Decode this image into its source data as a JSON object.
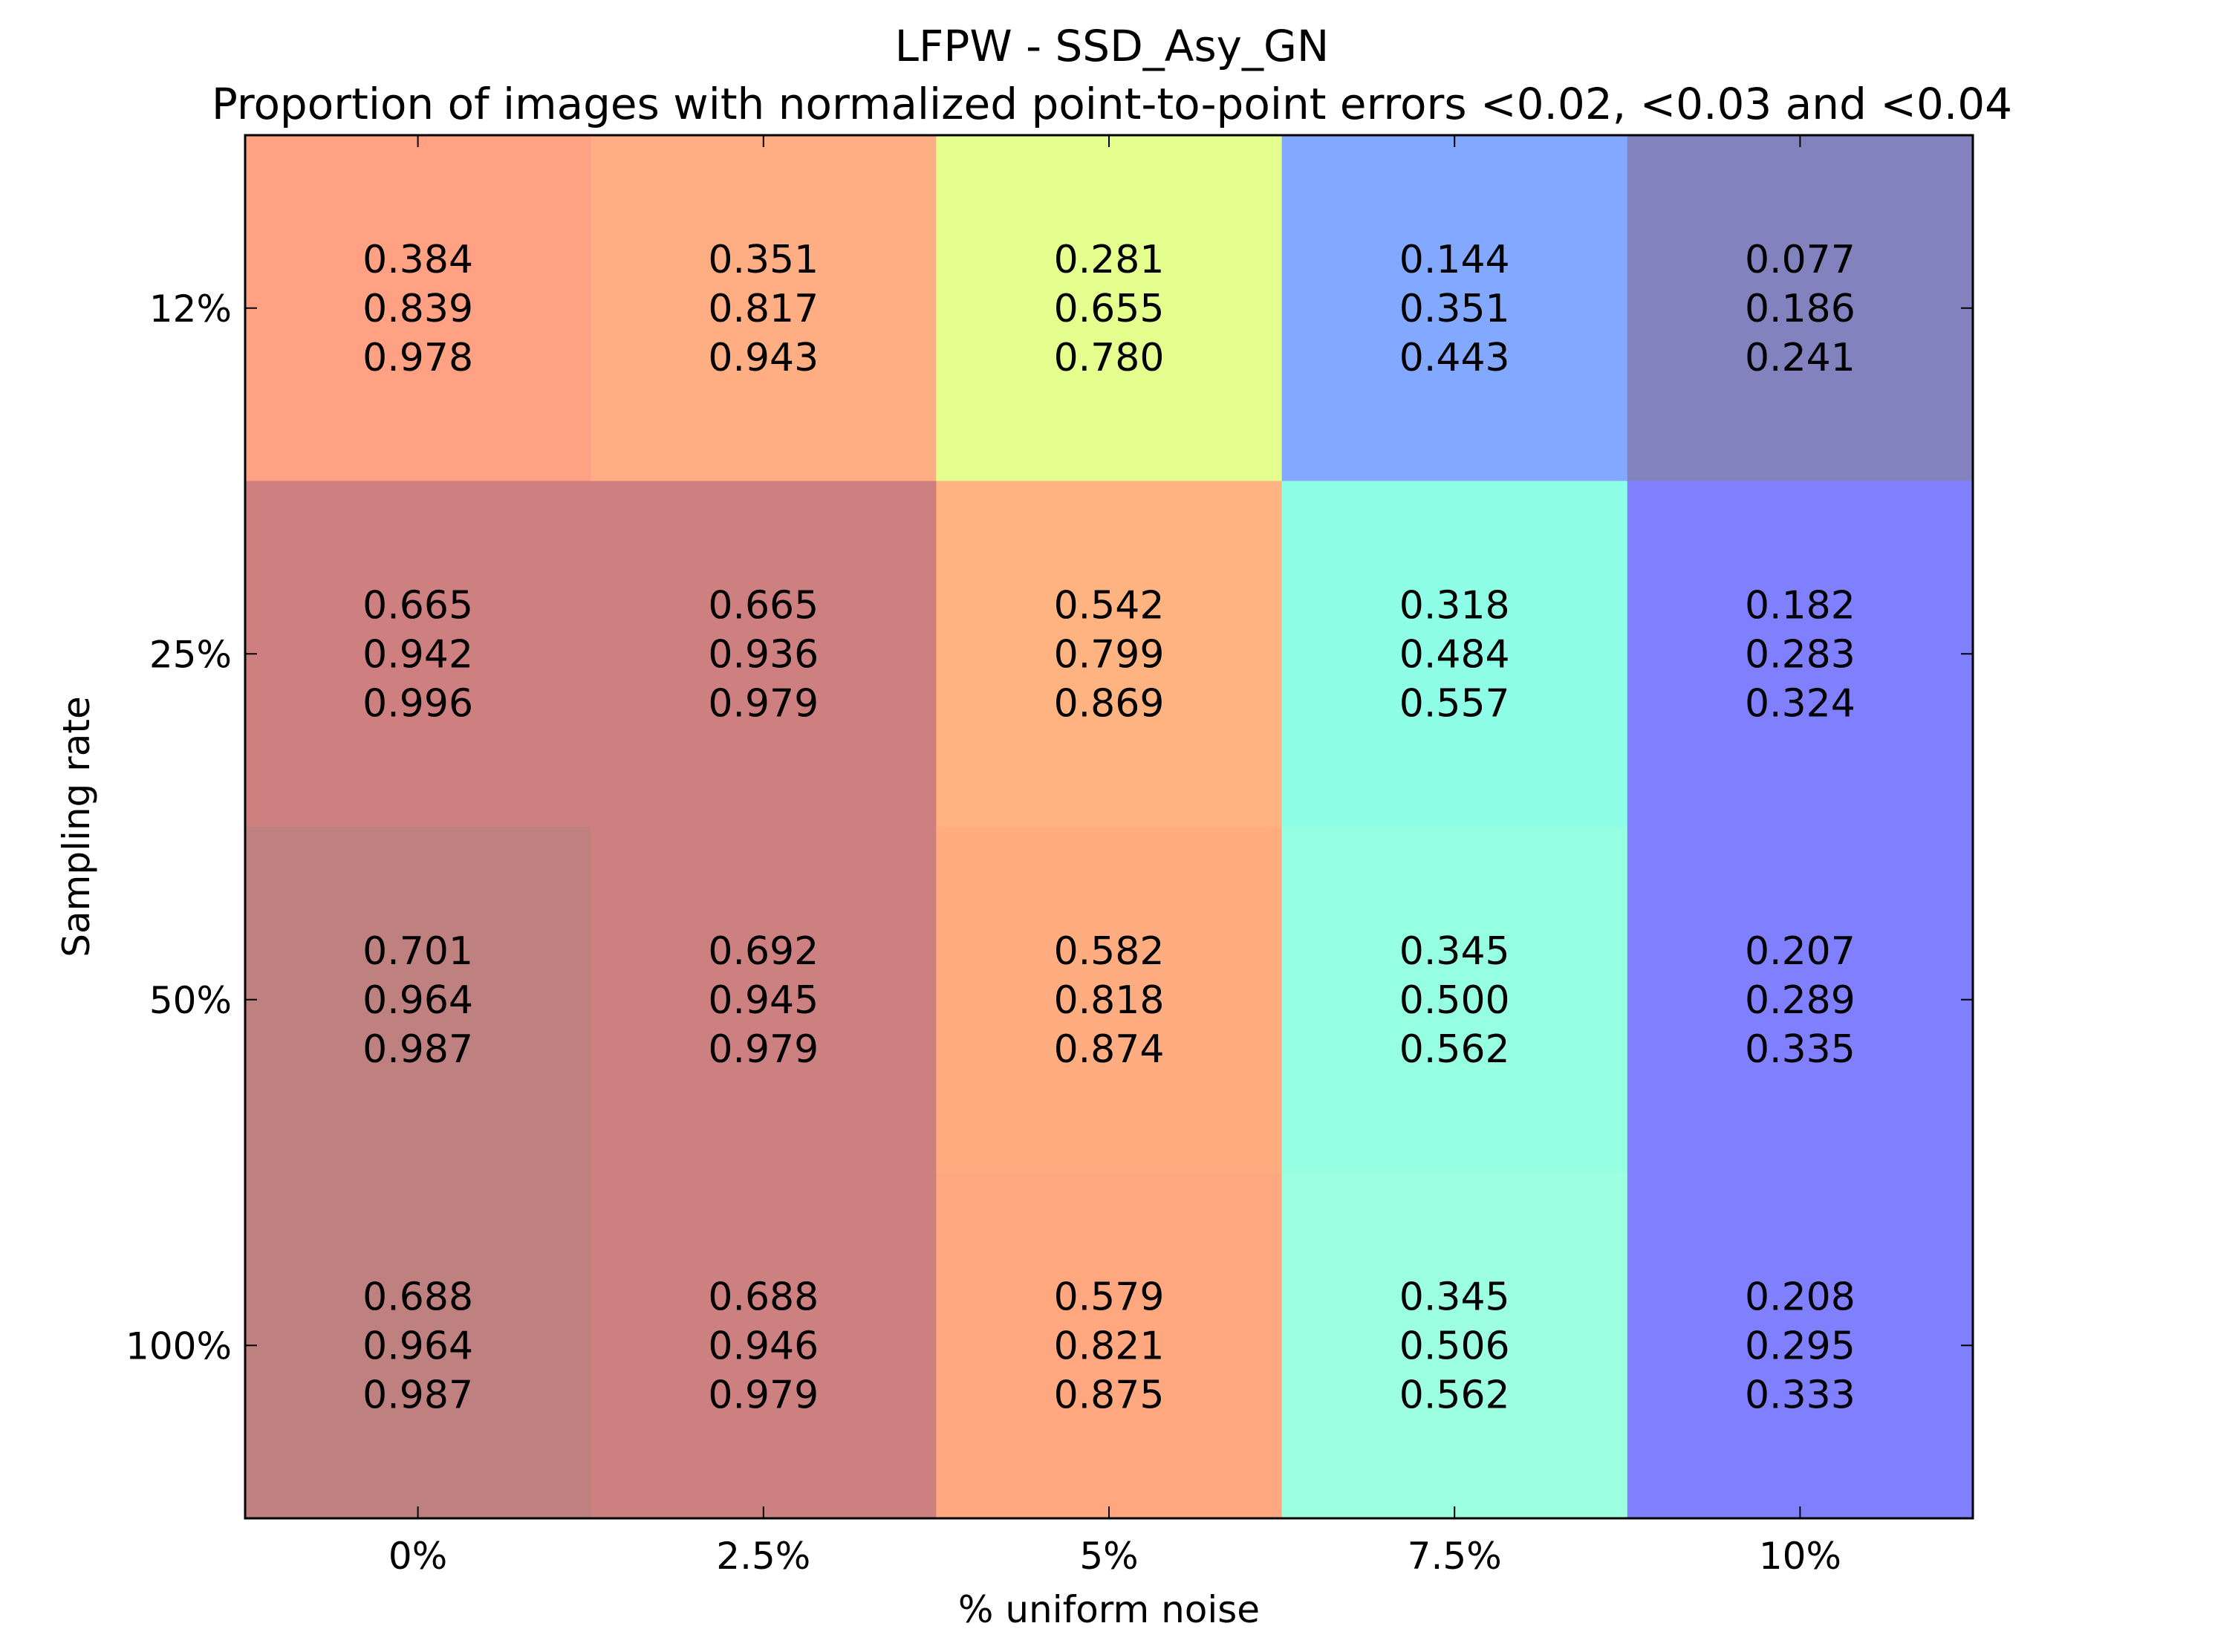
{
  "chart_data": {
    "type": "heatmap",
    "title": "LFPW - SSD_Asy_GN",
    "subtitle": "Proportion of images with normalized point-to-point errors <0.02, <0.03 and <0.04",
    "xlabel": "% uniform noise",
    "ylabel": "Sampling rate",
    "x_categories": [
      "0%",
      "2.5%",
      "5%",
      "7.5%",
      "10%"
    ],
    "y_categories": [
      "12%",
      "25%",
      "50%",
      "100%"
    ],
    "values": [
      [
        [
          0.384,
          0.839,
          0.978
        ],
        [
          0.351,
          0.817,
          0.943
        ],
        [
          0.281,
          0.655,
          0.78
        ],
        [
          0.144,
          0.351,
          0.443
        ],
        [
          0.077,
          0.186,
          0.241
        ]
      ],
      [
        [
          0.665,
          0.942,
          0.996
        ],
        [
          0.665,
          0.936,
          0.979
        ],
        [
          0.542,
          0.799,
          0.869
        ],
        [
          0.318,
          0.484,
          0.557
        ],
        [
          0.182,
          0.283,
          0.324
        ]
      ],
      [
        [
          0.701,
          0.964,
          0.987
        ],
        [
          0.692,
          0.945,
          0.979
        ],
        [
          0.582,
          0.818,
          0.874
        ],
        [
          0.345,
          0.5,
          0.562
        ],
        [
          0.207,
          0.289,
          0.335
        ]
      ],
      [
        [
          0.688,
          0.964,
          0.987
        ],
        [
          0.688,
          0.946,
          0.979
        ],
        [
          0.579,
          0.821,
          0.875
        ],
        [
          0.345,
          0.506,
          0.562
        ],
        [
          0.208,
          0.295,
          0.333
        ]
      ]
    ],
    "cell_colors": [
      [
        "#ffa182",
        "#ffad82",
        "#e5ff8f",
        "#82a9ff",
        "#8282bf"
      ],
      [
        "#ce8080",
        "#ce8080",
        "#ffb380",
        "#8effe6",
        "#8080ff"
      ],
      [
        "#bf8080",
        "#cc8080",
        "#ffad80",
        "#96ffe1",
        "#8080ff"
      ],
      [
        "#bf8080",
        "#cc8080",
        "#ffa880",
        "#9cffe0",
        "#8080ff"
      ]
    ],
    "grid": false
  }
}
